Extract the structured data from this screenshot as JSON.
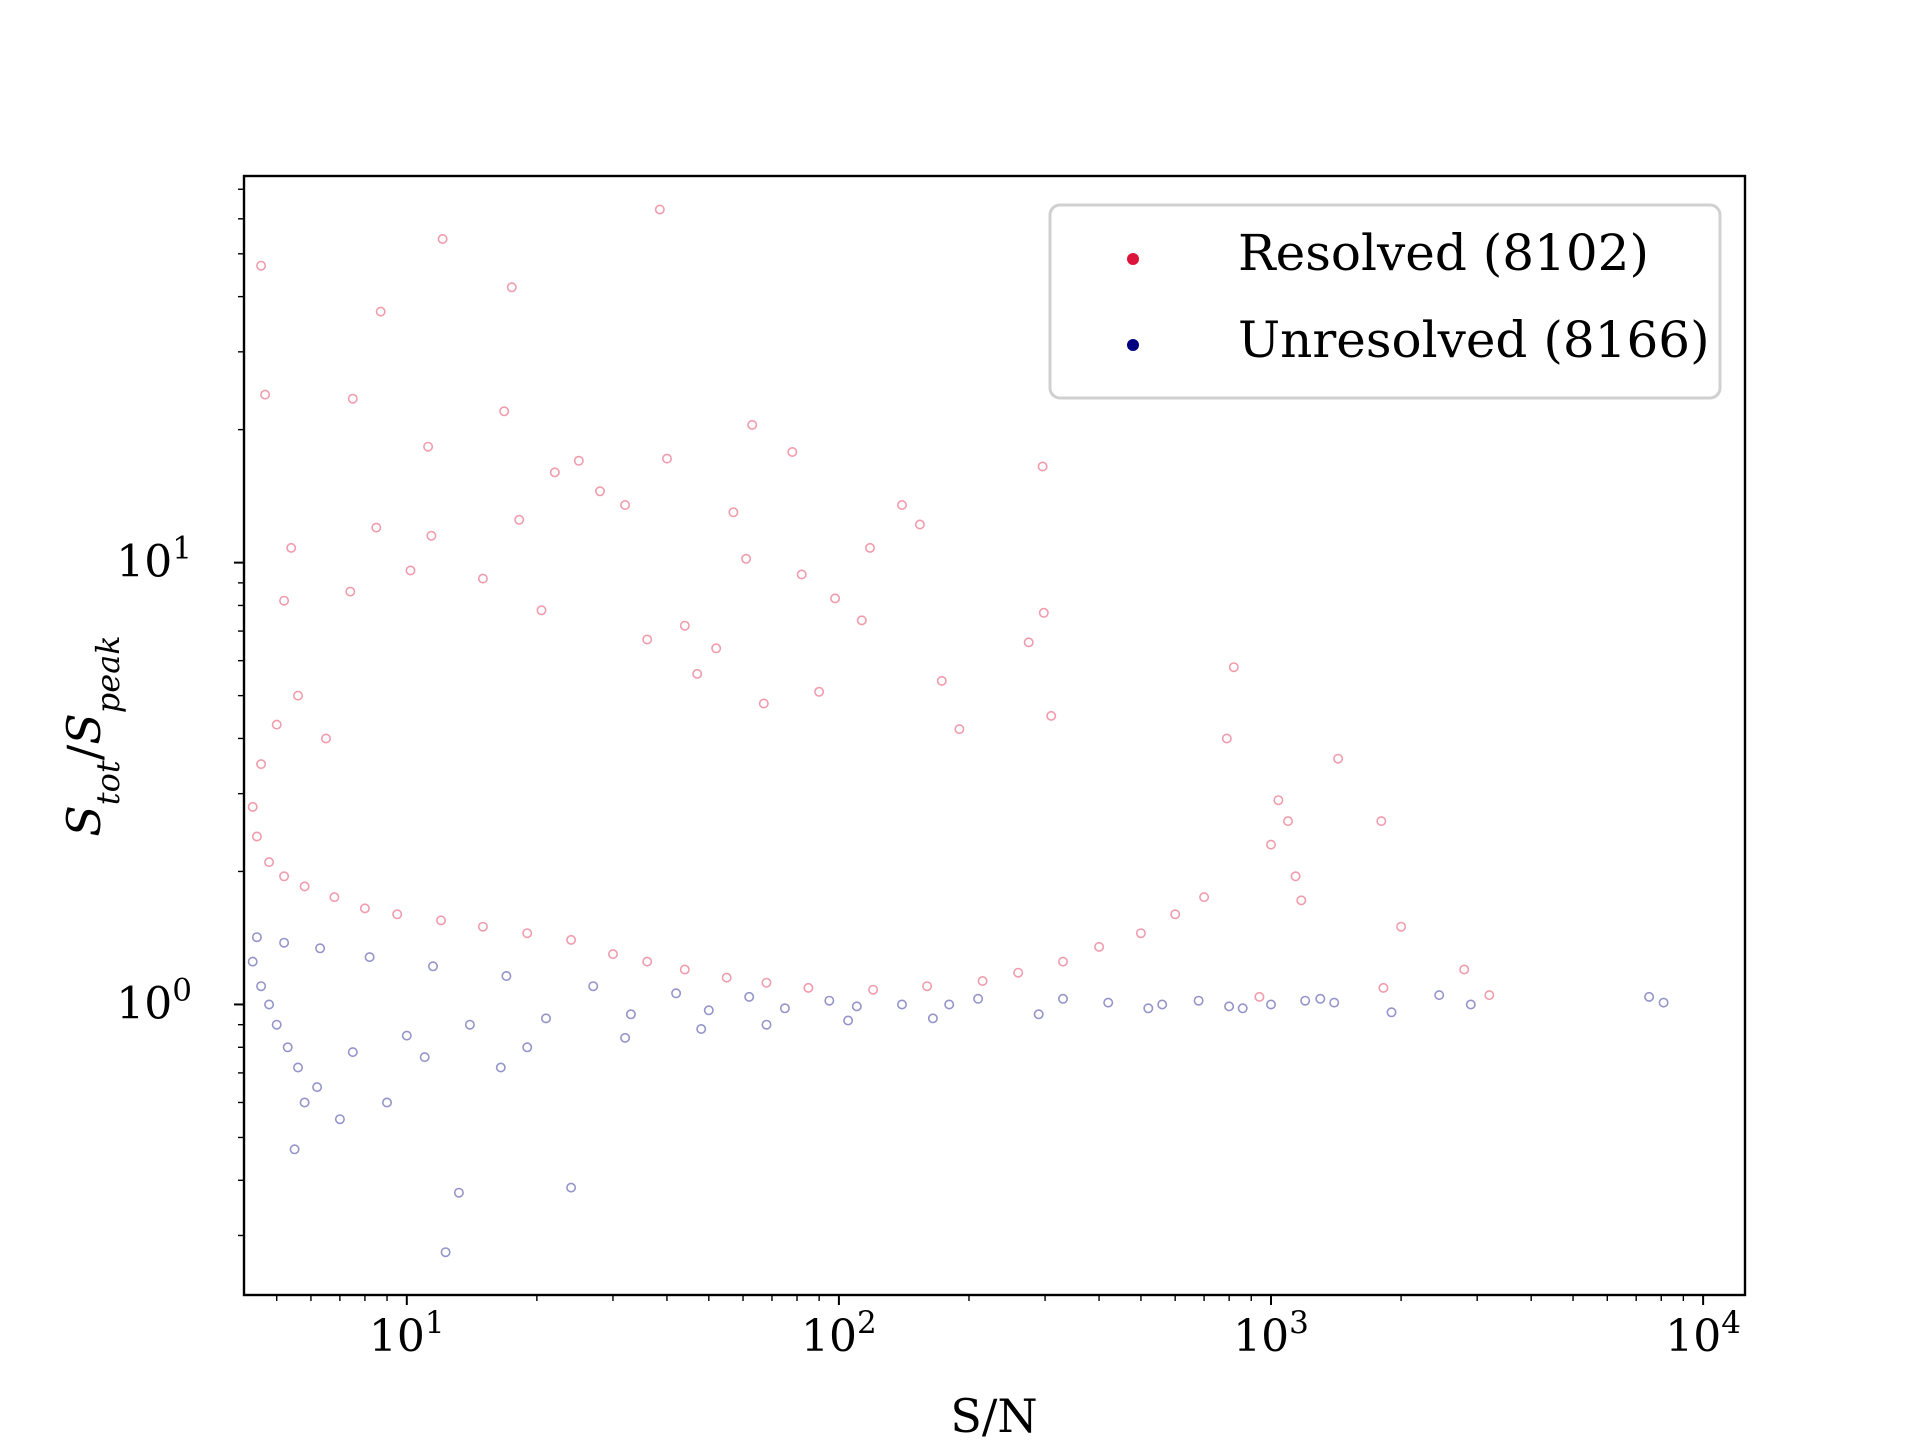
{
  "chart_data": {
    "type": "scatter",
    "xscale": "log",
    "yscale": "log",
    "xlim": [
      4.2,
      12500
    ],
    "ylim": [
      0.22,
      75
    ],
    "xlabel": "S/N",
    "ylabel": "S_tot/S_peak",
    "ylabel_parts": {
      "base1": "S",
      "sub1": "tot",
      "slash": "/",
      "base2": "S",
      "sub2": "peak"
    },
    "x_ticks": [
      {
        "value": 10,
        "base": "10",
        "exp": "1"
      },
      {
        "value": 100,
        "base": "10",
        "exp": "2"
      },
      {
        "value": 1000,
        "base": "10",
        "exp": "3"
      },
      {
        "value": 10000,
        "base": "10",
        "exp": "4"
      }
    ],
    "y_ticks": [
      {
        "value": 1,
        "base": "10",
        "exp": "0"
      },
      {
        "value": 10,
        "base": "10",
        "exp": "1"
      }
    ],
    "grid": false,
    "legend": {
      "position": "top-right"
    },
    "series": [
      {
        "name": "Resolved (8102)",
        "color": "#dc143c",
        "marker": "hollow-circle",
        "opacity": 0.15,
        "points": [
          [
            4.6,
            47
          ],
          [
            12.1,
            54
          ],
          [
            17.5,
            42
          ],
          [
            38.5,
            63
          ],
          [
            8.7,
            37
          ],
          [
            4.7,
            24
          ],
          [
            7.5,
            23.5
          ],
          [
            16.8,
            22
          ],
          [
            11.2,
            18.3
          ],
          [
            63,
            20.5
          ],
          [
            25,
            17
          ],
          [
            40,
            17.2
          ],
          [
            78,
            17.8
          ],
          [
            296,
            16.5
          ],
          [
            22,
            16
          ],
          [
            28,
            14.5
          ],
          [
            32,
            13.5
          ],
          [
            57,
            13
          ],
          [
            140,
            13.5
          ],
          [
            154,
            12.2
          ],
          [
            8.5,
            12
          ],
          [
            18.2,
            12.5
          ],
          [
            11.4,
            11.5
          ],
          [
            118,
            10.8
          ],
          [
            61,
            10.2
          ],
          [
            5.4,
            10.8
          ],
          [
            10.2,
            9.6
          ],
          [
            15,
            9.2
          ],
          [
            82,
            9.4
          ],
          [
            98,
            8.3
          ],
          [
            298,
            7.7
          ],
          [
            7.4,
            8.6
          ],
          [
            5.2,
            8.2
          ],
          [
            20.5,
            7.8
          ],
          [
            44,
            7.2
          ],
          [
            113,
            7.4
          ],
          [
            36,
            6.7
          ],
          [
            52,
            6.4
          ],
          [
            275,
            6.6
          ],
          [
            820,
            5.8
          ],
          [
            173,
            5.4
          ],
          [
            90,
            5.1
          ],
          [
            47,
            5.6
          ],
          [
            67,
            4.8
          ],
          [
            790,
            4.0
          ],
          [
            190,
            4.2
          ],
          [
            310,
            4.5
          ],
          [
            1430,
            3.6
          ],
          [
            1040,
            2.9
          ],
          [
            1095,
            2.6
          ],
          [
            1800,
            2.6
          ],
          [
            1000,
            2.3
          ],
          [
            1140,
            1.95
          ],
          [
            1175,
            1.72
          ],
          [
            2000,
            1.5
          ],
          [
            2800,
            1.2
          ],
          [
            3200,
            1.05
          ],
          [
            1820,
            1.09
          ],
          [
            940,
            1.04
          ],
          [
            700,
            1.75
          ],
          [
            600,
            1.6
          ],
          [
            500,
            1.45
          ],
          [
            400,
            1.35
          ],
          [
            330,
            1.25
          ],
          [
            260,
            1.18
          ],
          [
            215,
            1.13
          ],
          [
            160,
            1.1
          ],
          [
            120,
            1.08
          ],
          [
            85,
            1.09
          ],
          [
            68,
            1.12
          ],
          [
            55,
            1.15
          ],
          [
            44,
            1.2
          ],
          [
            36,
            1.25
          ],
          [
            30,
            1.3
          ],
          [
            24,
            1.4
          ],
          [
            19,
            1.45
          ],
          [
            15,
            1.5
          ],
          [
            12,
            1.55
          ],
          [
            9.5,
            1.6
          ],
          [
            8,
            1.65
          ],
          [
            6.8,
            1.75
          ],
          [
            5.8,
            1.85
          ],
          [
            5.2,
            1.95
          ],
          [
            4.8,
            2.1
          ],
          [
            4.5,
            2.4
          ],
          [
            4.4,
            2.8
          ],
          [
            4.6,
            3.5
          ],
          [
            5.0,
            4.3
          ],
          [
            5.6,
            5.0
          ],
          [
            6.5,
            4.0
          ]
        ]
      },
      {
        "name": "Unresolved (8166)",
        "color": "#000080",
        "marker": "hollow-circle",
        "opacity": 0.15,
        "points": [
          [
            12.3,
            0.275
          ],
          [
            24,
            0.385
          ],
          [
            13.2,
            0.375
          ],
          [
            5.5,
            0.47
          ],
          [
            7.0,
            0.55
          ],
          [
            9,
            0.6
          ],
          [
            5.8,
            0.6
          ],
          [
            6.2,
            0.65
          ],
          [
            16.5,
            0.72
          ],
          [
            11,
            0.76
          ],
          [
            19,
            0.8
          ],
          [
            32,
            0.84
          ],
          [
            48,
            0.88
          ],
          [
            68,
            0.9
          ],
          [
            105,
            0.92
          ],
          [
            165,
            0.93
          ],
          [
            290,
            0.95
          ],
          [
            520,
            0.98
          ],
          [
            800,
            0.99
          ],
          [
            1200,
            1.02
          ],
          [
            1900,
            0.96
          ],
          [
            2450,
            1.05
          ],
          [
            7500,
            1.04
          ],
          [
            8100,
            1.01
          ],
          [
            1400,
            1.01
          ],
          [
            1000,
            1.0
          ],
          [
            680,
            1.02
          ],
          [
            420,
            1.01
          ],
          [
            210,
            1.03
          ],
          [
            140,
            1.0
          ],
          [
            95,
            1.02
          ],
          [
            62,
            1.04
          ],
          [
            42,
            1.06
          ],
          [
            27,
            1.1
          ],
          [
            17,
            1.16
          ],
          [
            11.5,
            1.22
          ],
          [
            8.2,
            1.28
          ],
          [
            6.3,
            1.34
          ],
          [
            5.2,
            1.38
          ],
          [
            4.5,
            1.42
          ],
          [
            4.4,
            1.25
          ],
          [
            4.6,
            1.1
          ],
          [
            4.8,
            1.0
          ],
          [
            5.0,
            0.9
          ],
          [
            5.3,
            0.8
          ],
          [
            5.6,
            0.72
          ],
          [
            7.5,
            0.78
          ],
          [
            10,
            0.85
          ],
          [
            14,
            0.9
          ],
          [
            21,
            0.93
          ],
          [
            33,
            0.95
          ],
          [
            50,
            0.97
          ],
          [
            75,
            0.98
          ],
          [
            110,
            0.99
          ],
          [
            180,
            1.0
          ],
          [
            330,
            1.03
          ],
          [
            560,
            1.0
          ],
          [
            860,
            0.98
          ],
          [
            1300,
            1.03
          ],
          [
            2900,
            1.0
          ]
        ]
      }
    ]
  }
}
